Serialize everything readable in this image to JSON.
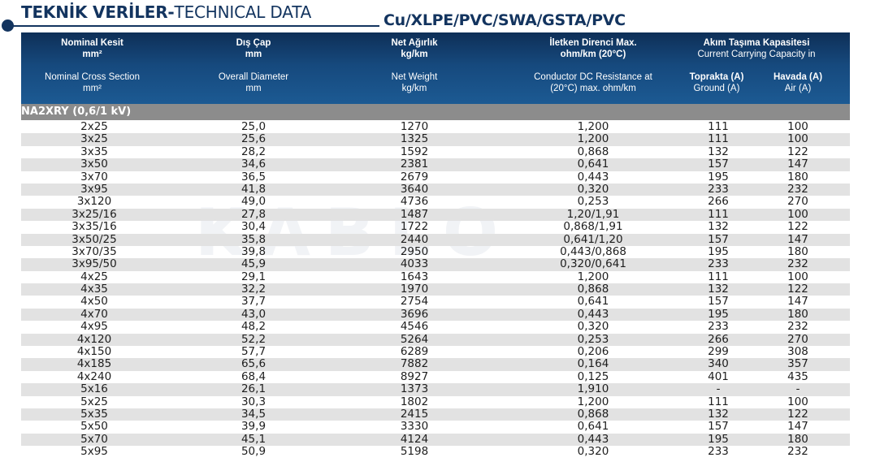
{
  "title": {
    "bold": "TEKNİK VERİLER-",
    "light": "TECHNICAL DATA",
    "cable_type": "Cu/XLPE/PVC/SWA/GSTA/PVC"
  },
  "header": {
    "col1_tr": "Nominal Kesit",
    "col1_tr_unit": "mm²",
    "col1_en": "Nominal Cross Section",
    "col1_en_unit": "mm²",
    "col2_tr": "Dış Çap",
    "col2_tr_unit": "mm",
    "col2_en": "Overall Diameter",
    "col2_en_unit": "mm",
    "col3_tr": "Net Ağırlık",
    "col3_tr_unit": "kg/km",
    "col3_en": "Net Weight",
    "col3_en_unit": "kg/km",
    "col4_tr": "İletken Direnci Max.",
    "col4_tr_unit": "ohm/km (20°C)",
    "col4_en": "Conductor DC Resistance at",
    "col4_en_unit": "(20°C) max. ohm/km",
    "col5_tr": "Akım Taşıma Kapasitesi",
    "col5_en": "Current Carrying Capacity in",
    "col5a_tr": "Toprakta (A)",
    "col5a_en": "Ground (A)",
    "col5b_tr": "Havada (A)",
    "col5b_en": "Air (A)"
  },
  "section_label": "NA2XRY (0,6/1 kV)",
  "rows": [
    [
      "2x25",
      "25,0",
      "1270",
      "1,200",
      "111",
      "100"
    ],
    [
      "3x25",
      "25,6",
      "1325",
      "1,200",
      "111",
      "100"
    ],
    [
      "3x35",
      "28,2",
      "1592",
      "0,868",
      "132",
      "122"
    ],
    [
      "3x50",
      "34,6",
      "2381",
      "0,641",
      "157",
      "147"
    ],
    [
      "3x70",
      "36,5",
      "2679",
      "0,443",
      "195",
      "180"
    ],
    [
      "3x95",
      "41,8",
      "3640",
      "0,320",
      "233",
      "232"
    ],
    [
      "3x120",
      "49,0",
      "4736",
      "0,253",
      "266",
      "270"
    ],
    [
      "3x25/16",
      "27,8",
      "1487",
      "1,20/1,91",
      "111",
      "100"
    ],
    [
      "3x35/16",
      "30,4",
      "1722",
      "0,868/1,91",
      "132",
      "122"
    ],
    [
      "3x50/25",
      "35,8",
      "2440",
      "0,641/1,20",
      "157",
      "147"
    ],
    [
      "3x70/35",
      "39,8",
      "2950",
      "0,443/0,868",
      "195",
      "180"
    ],
    [
      "3x95/50",
      "45,9",
      "4033",
      "0,320/0,641",
      "233",
      "232"
    ],
    [
      "4x25",
      "29,1",
      "1643",
      "1,200",
      "111",
      "100"
    ],
    [
      "4x35",
      "32,2",
      "1970",
      "0,868",
      "132",
      "122"
    ],
    [
      "4x50",
      "37,7",
      "2754",
      "0,641",
      "157",
      "147"
    ],
    [
      "4x70",
      "43,0",
      "3696",
      "0,443",
      "195",
      "180"
    ],
    [
      "4x95",
      "48,2",
      "4546",
      "0,320",
      "233",
      "232"
    ],
    [
      "4x120",
      "52,2",
      "5264",
      "0,253",
      "266",
      "270"
    ],
    [
      "4x150",
      "57,7",
      "6289",
      "0,206",
      "299",
      "308"
    ],
    [
      "4x185",
      "65,6",
      "7882",
      "0,164",
      "340",
      "357"
    ],
    [
      "4x240",
      "68,4",
      "8927",
      "0,125",
      "401",
      "435"
    ],
    [
      "5x16",
      "26,1",
      "1373",
      "1,910",
      "-",
      "-"
    ],
    [
      "5x25",
      "30,3",
      "1802",
      "1,200",
      "111",
      "100"
    ],
    [
      "5x35",
      "34,5",
      "2415",
      "0,868",
      "132",
      "122"
    ],
    [
      "5x50",
      "39,9",
      "3330",
      "0,641",
      "157",
      "147"
    ],
    [
      "5x70",
      "45,1",
      "4124",
      "0,443",
      "195",
      "180"
    ],
    [
      "5x95",
      "50,9",
      "5198",
      "0,320",
      "233",
      "232"
    ]
  ],
  "watermark": "KABLO"
}
